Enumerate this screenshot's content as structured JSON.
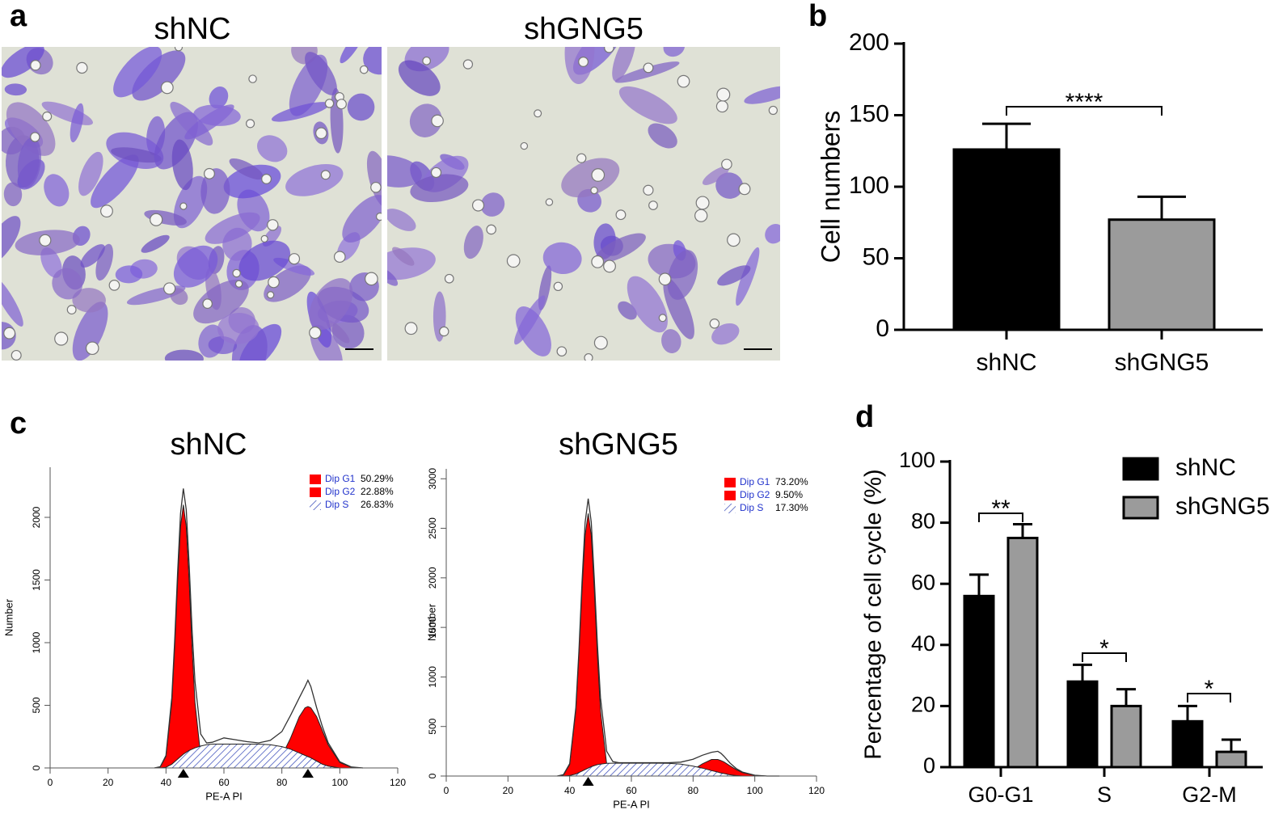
{
  "images": {
    "panel": "a",
    "titles": [
      "shNC",
      "shGNG5"
    ]
  },
  "chart_data": [
    {
      "type": "bar",
      "panel": "b",
      "ylabel": "Cell numbers",
      "categories": [
        "shNC",
        "shGNG5"
      ],
      "values": [
        126,
        77
      ],
      "errors": [
        18,
        16
      ],
      "colors": [
        "#000000",
        "#9b9b9b"
      ],
      "ylim": [
        0,
        200
      ],
      "yticks": [
        0,
        50,
        100,
        150,
        200
      ],
      "annotations": [
        "****"
      ]
    },
    {
      "type": "area",
      "panel": "c",
      "title": "shNC",
      "xlabel": "PE-A PI",
      "ylabel": "Number",
      "xlim": [
        0,
        120
      ],
      "xticks": [
        0,
        20,
        40,
        60,
        80,
        100,
        120
      ],
      "ylim": [
        0,
        2400
      ],
      "yticks": [
        0,
        500,
        1000,
        1500,
        2000
      ],
      "x": [
        36,
        38,
        40,
        42,
        43,
        44,
        45,
        46,
        47,
        48,
        49,
        50,
        52,
        54,
        56,
        60,
        64,
        68,
        72,
        76,
        80,
        83,
        86,
        88,
        89,
        90,
        92,
        94,
        96,
        100,
        104,
        108
      ],
      "values": [
        0,
        10,
        100,
        560,
        1020,
        1560,
        2030,
        2230,
        2060,
        1620,
        1100,
        690,
        270,
        200,
        205,
        240,
        225,
        210,
        200,
        220,
        290,
        420,
        560,
        650,
        700,
        650,
        480,
        330,
        200,
        50,
        8,
        0
      ],
      "markers": [
        46,
        89
      ],
      "series": [
        {
          "name": "Dip G1",
          "share_label": "50.29%",
          "color": "#ff0000",
          "fill": "solid",
          "values": [
            0,
            8,
            92,
            523,
            962,
            1484,
            1925,
            2100,
            1925,
            1484,
            962,
            523,
            92,
            8,
            0,
            0,
            0,
            0,
            0,
            0,
            0,
            0,
            0,
            0,
            0,
            0,
            0,
            0,
            0,
            0,
            0,
            0
          ]
        },
        {
          "name": "Dip G2",
          "share_label": "22.88%",
          "color": "#ff0000",
          "fill": "solid",
          "values": [
            0,
            0,
            0,
            0,
            0,
            0,
            0,
            0,
            0,
            0,
            0,
            0,
            0,
            0,
            0,
            0,
            0,
            0,
            2,
            17,
            97,
            238,
            409,
            480,
            490,
            480,
            409,
            297,
            184,
            44,
            5,
            0
          ]
        },
        {
          "name": "Dip S",
          "share_label": "26.83%",
          "color": "#2b3fb5",
          "fill": "hatch",
          "values": [
            0,
            0,
            5,
            30,
            50,
            70,
            90,
            110,
            125,
            140,
            150,
            160,
            175,
            185,
            190,
            190,
            190,
            190,
            190,
            185,
            170,
            150,
            120,
            100,
            90,
            80,
            55,
            30,
            15,
            0,
            0,
            0
          ]
        }
      ]
    },
    {
      "type": "area",
      "panel": "",
      "title": "shGNG5",
      "xlabel": "PE-A PI",
      "ylabel": "Number",
      "xlim": [
        0,
        120
      ],
      "xticks": [
        0,
        20,
        40,
        60,
        80,
        100,
        120
      ],
      "ylim": [
        0,
        3100
      ],
      "yticks": [
        0,
        500,
        1000,
        1500,
        2000,
        2500,
        3000
      ],
      "x": [
        36,
        38,
        40,
        42,
        43,
        44,
        45,
        46,
        47,
        48,
        49,
        50,
        52,
        54,
        56,
        60,
        64,
        68,
        72,
        76,
        80,
        83,
        86,
        88,
        89,
        90,
        92,
        94,
        96,
        100,
        104,
        108
      ],
      "values": [
        0,
        15,
        125,
        690,
        1260,
        1950,
        2560,
        2800,
        2560,
        1980,
        1330,
        790,
        250,
        145,
        135,
        135,
        135,
        135,
        135,
        140,
        170,
        210,
        240,
        250,
        230,
        200,
        130,
        75,
        40,
        8,
        0,
        0
      ],
      "markers": [
        46
      ],
      "series": [
        {
          "name": "Dip G1",
          "share_label": "73.20%",
          "color": "#ff0000",
          "fill": "solid",
          "values": [
            0,
            10,
            117,
            660,
            1214,
            1873,
            2430,
            2650,
            2430,
            1873,
            1214,
            660,
            117,
            10,
            0,
            0,
            0,
            0,
            0,
            0,
            0,
            0,
            0,
            0,
            0,
            0,
            0,
            0,
            0,
            0,
            0,
            0
          ]
        },
        {
          "name": "Dip G2",
          "share_label": "9.50%",
          "color": "#ff0000",
          "fill": "solid",
          "values": [
            0,
            0,
            0,
            0,
            0,
            0,
            0,
            0,
            0,
            0,
            0,
            0,
            0,
            0,
            0,
            0,
            0,
            0,
            2,
            15,
            64,
            123,
            167,
            167,
            157,
            142,
            103,
            64,
            34,
            6,
            0,
            0
          ]
        },
        {
          "name": "Dip S",
          "share_label": "17.30%",
          "color": "#2b3fb5",
          "fill": "hatch",
          "values": [
            0,
            0,
            5,
            20,
            35,
            50,
            65,
            80,
            95,
            105,
            115,
            120,
            128,
            130,
            130,
            130,
            130,
            130,
            128,
            120,
            100,
            80,
            55,
            40,
            30,
            25,
            12,
            5,
            0,
            0,
            0,
            0
          ]
        }
      ]
    },
    {
      "type": "bar",
      "panel": "d",
      "ylabel": "Percentage of cell cycle (%)",
      "categories": [
        "G0-G1",
        "S",
        "G2-M"
      ],
      "series": [
        {
          "name": "shNC",
          "color": "#000000",
          "values": [
            56,
            28,
            15
          ],
          "errors": [
            7,
            5.5,
            5
          ]
        },
        {
          "name": "shGNG5",
          "color": "#9b9b9b",
          "values": [
            75,
            20,
            5
          ],
          "errors": [
            4.5,
            5.5,
            4
          ]
        }
      ],
      "ylim": [
        0,
        100
      ],
      "yticks": [
        0,
        20,
        40,
        60,
        80,
        100
      ],
      "annotations": [
        "**",
        "*",
        "*"
      ]
    }
  ]
}
